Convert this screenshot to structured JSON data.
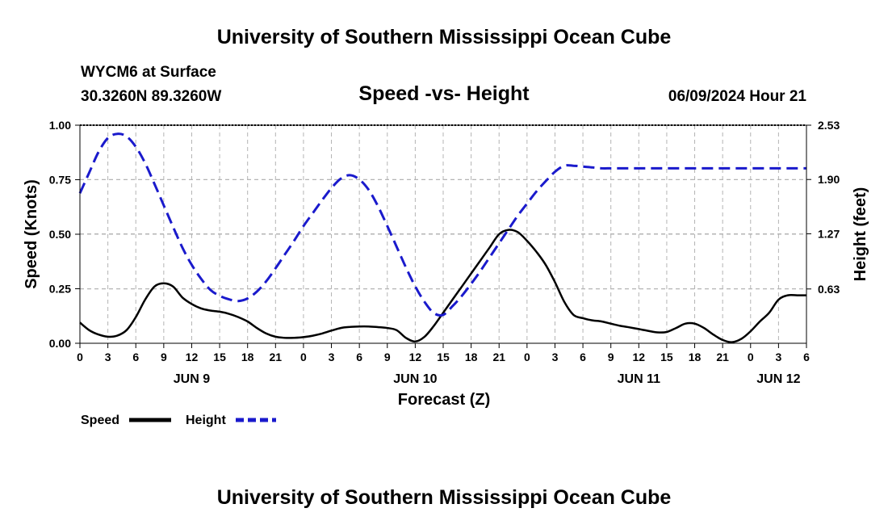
{
  "header": {
    "title": "University of Southern Mississippi Ocean Cube",
    "station": "WYCM6 at Surface",
    "coords": "30.3260N  89.3260W",
    "issued": "06/09/2024 Hour 21"
  },
  "footer": {
    "title": "University of Southern Mississippi Ocean Cube"
  },
  "chart_data": {
    "type": "line",
    "title": "Speed -vs- Height",
    "xlabel": "Forecast (Z)",
    "ylabel": "Speed (Knots)",
    "y2label": "Height (feet)",
    "xlim": [
      0,
      78
    ],
    "ylim": [
      0,
      1
    ],
    "y2lim": [
      0,
      2.53
    ],
    "grid": true,
    "x_tick_labels": [
      "0",
      "3",
      "6",
      "9",
      "12",
      "15",
      "18",
      "21",
      "0",
      "3",
      "6",
      "9",
      "12",
      "15",
      "18",
      "21",
      "0",
      "3",
      "6",
      "9",
      "12",
      "15",
      "18",
      "21",
      "0",
      "3",
      "6"
    ],
    "y_tick_labels": [
      "0.00",
      "0.25",
      "0.50",
      "0.75",
      "1.00"
    ],
    "y_tick_values": [
      0,
      0.25,
      0.5,
      0.75,
      1.0
    ],
    "y2_tick_labels": [
      "0.63",
      "1.27",
      "1.90",
      "2.53"
    ],
    "y2_tick_values": [
      0.63,
      1.27,
      1.9,
      2.53
    ],
    "date_labels": [
      {
        "label": "JUN 9",
        "x": 12
      },
      {
        "label": "JUN 10",
        "x": 36
      },
      {
        "label": "JUN 11",
        "x": 60
      },
      {
        "label": "JUN 12",
        "x": 75
      }
    ],
    "series": [
      {
        "name": "Speed",
        "axis": "left",
        "color": "#000000",
        "dash": "solid",
        "x": [
          0,
          1,
          2,
          3,
          4,
          5,
          6,
          7,
          8,
          9,
          10,
          11,
          12,
          13,
          14,
          15,
          16,
          17,
          18,
          19,
          20,
          21,
          22,
          23,
          24,
          25,
          26,
          27,
          28,
          29,
          30,
          31,
          32,
          33,
          34,
          35,
          36,
          37,
          38,
          39,
          40,
          41,
          42,
          43,
          44,
          45,
          46,
          47,
          48,
          49,
          50,
          51,
          52,
          53,
          54,
          55,
          56,
          57,
          58,
          59,
          60,
          61,
          62,
          63,
          64,
          65,
          66,
          67,
          68,
          69,
          70,
          71,
          72,
          73,
          74,
          75,
          76,
          77,
          78
        ],
        "values": [
          0.095,
          0.06,
          0.04,
          0.03,
          0.035,
          0.06,
          0.12,
          0.2,
          0.26,
          0.275,
          0.26,
          0.21,
          0.18,
          0.16,
          0.15,
          0.145,
          0.135,
          0.12,
          0.1,
          0.07,
          0.045,
          0.03,
          0.025,
          0.025,
          0.028,
          0.035,
          0.045,
          0.058,
          0.07,
          0.075,
          0.077,
          0.077,
          0.074,
          0.07,
          0.06,
          0.025,
          0.008,
          0.03,
          0.08,
          0.14,
          0.2,
          0.26,
          0.32,
          0.38,
          0.44,
          0.5,
          0.52,
          0.51,
          0.47,
          0.42,
          0.36,
          0.28,
          0.19,
          0.13,
          0.115,
          0.105,
          0.1,
          0.09,
          0.08,
          0.073,
          0.065,
          0.057,
          0.05,
          0.052,
          0.07,
          0.09,
          0.09,
          0.07,
          0.04,
          0.015,
          0.005,
          0.02,
          0.055,
          0.1,
          0.14,
          0.2,
          0.22,
          0.22,
          0.22
        ]
      },
      {
        "name": "Height",
        "axis": "right",
        "color": "#1a1acc",
        "dash": "dashed",
        "x": [
          0,
          1,
          2,
          3,
          4,
          5,
          6,
          7,
          8,
          9,
          10,
          11,
          12,
          13,
          14,
          15,
          16,
          17,
          18,
          19,
          20,
          21,
          22,
          23,
          24,
          25,
          26,
          27,
          28,
          29,
          30,
          31,
          32,
          33,
          34,
          35,
          36,
          37,
          38,
          39,
          40,
          41,
          42,
          43,
          44,
          45,
          46,
          47,
          48,
          49,
          50,
          51,
          52,
          53,
          54,
          55,
          56,
          57,
          58,
          59,
          60,
          61,
          62,
          63,
          64,
          65,
          66,
          67,
          68,
          69,
          70,
          71,
          72,
          73,
          74,
          75,
          76,
          77,
          78
        ],
        "values": [
          1.74,
          1.98,
          2.22,
          2.38,
          2.43,
          2.4,
          2.28,
          2.09,
          1.85,
          1.6,
          1.35,
          1.11,
          0.91,
          0.75,
          0.62,
          0.55,
          0.51,
          0.49,
          0.52,
          0.6,
          0.72,
          0.87,
          1.03,
          1.19,
          1.36,
          1.51,
          1.66,
          1.8,
          1.91,
          1.95,
          1.9,
          1.78,
          1.59,
          1.36,
          1.12,
          0.88,
          0.66,
          0.48,
          0.35,
          0.33,
          0.43,
          0.55,
          0.69,
          0.84,
          1.0,
          1.16,
          1.32,
          1.48,
          1.62,
          1.76,
          1.88,
          1.99,
          2.06,
          2.06,
          2.05,
          2.04,
          2.03,
          2.03,
          2.03,
          2.03,
          2.03,
          2.03,
          2.03,
          2.03,
          2.03,
          2.03,
          2.03,
          2.03,
          2.03,
          2.03,
          2.03,
          2.03,
          2.03,
          2.03,
          2.03,
          2.03,
          2.03,
          2.03,
          2.03
        ]
      }
    ],
    "legend": [
      {
        "label": "Speed",
        "color": "#000000",
        "dash": "solid"
      },
      {
        "label": "Height",
        "color": "#1a1acc",
        "dash": "dashed"
      }
    ]
  }
}
